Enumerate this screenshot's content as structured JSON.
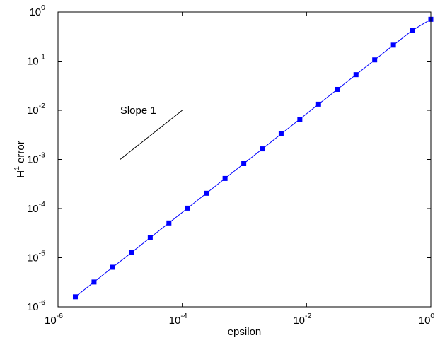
{
  "chart_data": {
    "type": "line",
    "xscale": "log",
    "yscale": "log",
    "xlim": [
      1e-06,
      1
    ],
    "ylim": [
      1e-06,
      1
    ],
    "xlabel": "epsilon",
    "ylabel": {
      "base": "H",
      "sup": "1",
      "rest": " error"
    },
    "grid": false,
    "x_ticks": [
      {
        "value": 1e-06,
        "base": "10",
        "exp": "-6"
      },
      {
        "value": 0.0001,
        "base": "10",
        "exp": "-4"
      },
      {
        "value": 0.01,
        "base": "10",
        "exp": "-2"
      },
      {
        "value": 1,
        "base": "10",
        "exp": "0"
      }
    ],
    "y_ticks": [
      {
        "value": 1e-06,
        "base": "10",
        "exp": "-6"
      },
      {
        "value": 1e-05,
        "base": "10",
        "exp": "-5"
      },
      {
        "value": 0.0001,
        "base": "10",
        "exp": "-4"
      },
      {
        "value": 0.001,
        "base": "10",
        "exp": "-3"
      },
      {
        "value": 0.01,
        "base": "10",
        "exp": "-2"
      },
      {
        "value": 0.1,
        "base": "10",
        "exp": "-1"
      },
      {
        "value": 1,
        "base": "10",
        "exp": "0"
      }
    ],
    "series": [
      {
        "color": "#0000ff",
        "marker": "square",
        "x": [
          1.9e-06,
          3.8e-06,
          7.6e-06,
          1.53e-05,
          3.05e-05,
          6.1e-05,
          0.000122,
          0.000244,
          0.000488,
          0.000977,
          0.00195,
          0.0039,
          0.0078,
          0.0156,
          0.0313,
          0.0625,
          0.125,
          0.25,
          0.5,
          1.0
        ],
        "y": [
          1.6e-06,
          3.2e-06,
          6.4e-06,
          1.28e-05,
          2.56e-05,
          5.1e-05,
          0.000102,
          0.000205,
          0.00041,
          0.00082,
          0.00164,
          0.0033,
          0.0066,
          0.0133,
          0.0266,
          0.053,
          0.106,
          0.212,
          0.42,
          0.71
        ]
      }
    ],
    "reference_line": {
      "label": "Slope 1",
      "color": "#000000",
      "x": [
        1e-05,
        0.0001
      ],
      "y": [
        0.001,
        0.01
      ]
    }
  }
}
